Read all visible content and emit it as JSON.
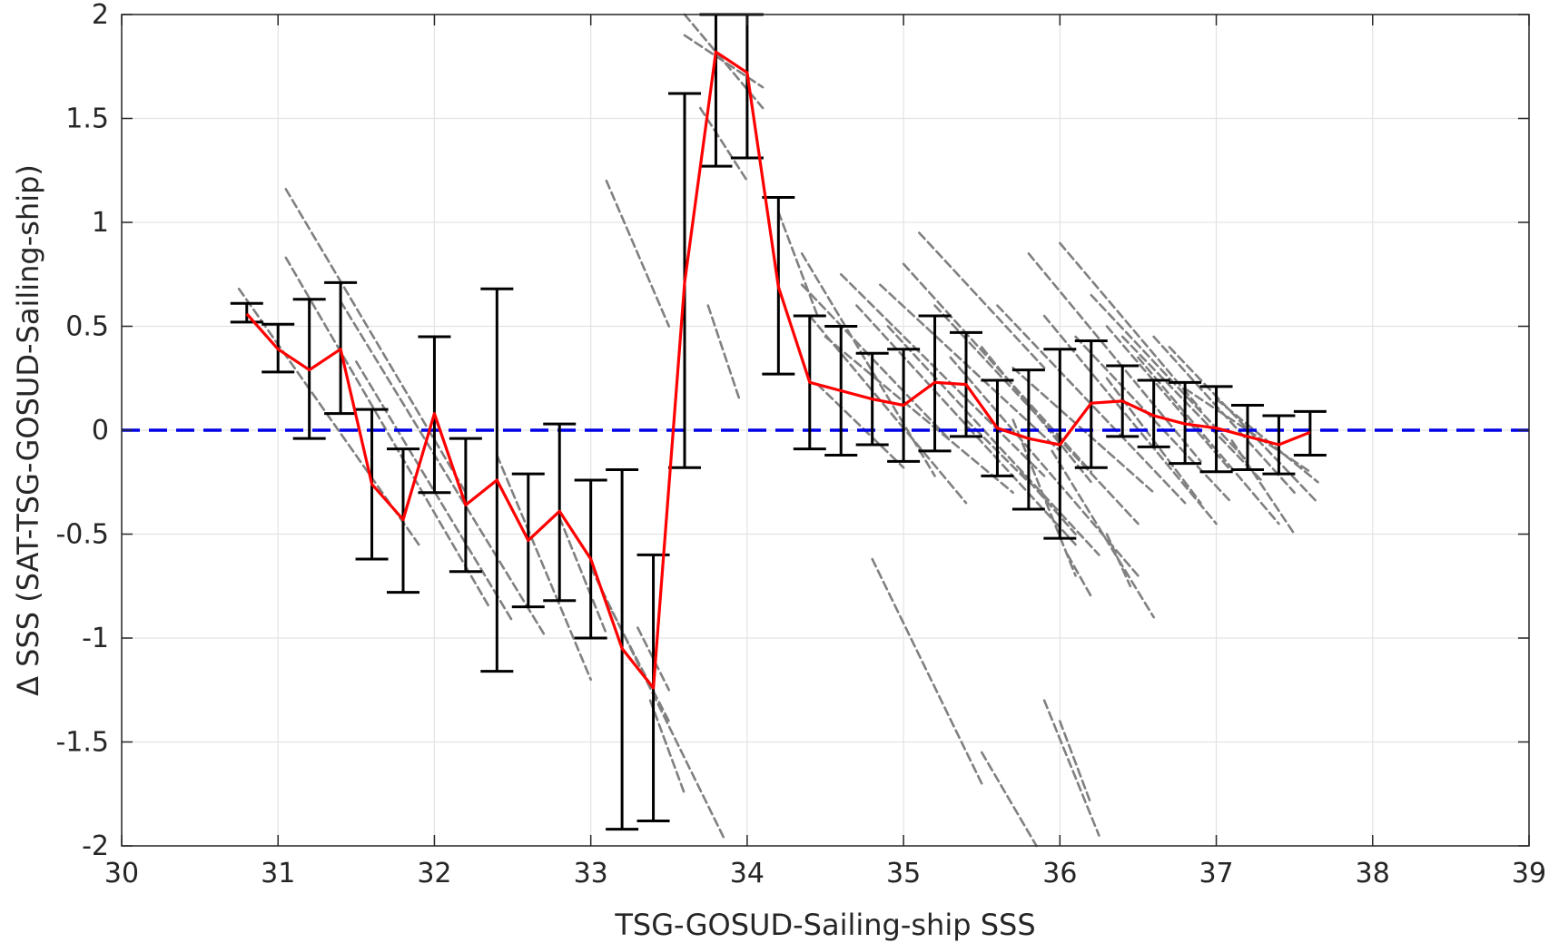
{
  "chart_data": {
    "type": "line",
    "title": "",
    "xlabel": "TSG-GOSUD-Sailing-ship SSS",
    "ylabel": "Δ SSS (SAT-TSG-GOSUD-Sailing-ship)",
    "xlim": [
      30,
      39
    ],
    "ylim": [
      -2,
      2
    ],
    "xticks": [
      30,
      31,
      32,
      33,
      34,
      35,
      36,
      37,
      38,
      39
    ],
    "yticks": [
      -2,
      -1.5,
      -1,
      -0.5,
      0,
      0.5,
      1,
      1.5,
      2
    ],
    "grid": true,
    "legend": "none",
    "colors": {
      "mean_line": "#ff0000",
      "error_bars": "#000000",
      "zero_line": "#0000e6",
      "scatter": "#808080",
      "grid": "#e3e3e3",
      "axes": "#262626"
    },
    "reference_line": {
      "y": 0,
      "style": "dashed"
    },
    "series": [
      {
        "kind": "mean_with_std",
        "x": [
          30.8,
          31.0,
          31.2,
          31.4,
          31.6,
          31.8,
          32.0,
          32.2,
          32.4,
          32.6,
          32.8,
          33.0,
          33.2,
          33.4,
          33.6,
          33.8,
          34.0,
          34.2,
          34.4,
          34.6,
          34.8,
          35.0,
          35.2,
          35.4,
          35.6,
          35.8,
          36.0,
          36.2,
          36.4,
          36.6,
          36.8,
          37.0,
          37.2,
          37.4,
          37.6
        ],
        "y": [
          0.56,
          0.39,
          0.29,
          0.39,
          -0.26,
          -0.43,
          0.08,
          -0.36,
          -0.24,
          -0.53,
          -0.39,
          -0.62,
          -1.05,
          -1.24,
          0.71,
          1.82,
          1.72,
          0.69,
          0.23,
          0.19,
          0.15,
          0.12,
          0.23,
          0.22,
          0.01,
          -0.04,
          -0.07,
          0.13,
          0.14,
          0.07,
          0.03,
          0.01,
          -0.03,
          -0.07,
          -0.01
        ],
        "lower": [
          0.52,
          0.28,
          -0.04,
          0.08,
          -0.62,
          -0.78,
          -0.3,
          -0.68,
          -1.16,
          -0.85,
          -0.82,
          -1.0,
          -1.92,
          -1.88,
          -0.18,
          1.27,
          1.31,
          0.27,
          -0.09,
          -0.12,
          -0.07,
          -0.15,
          -0.1,
          -0.03,
          -0.22,
          -0.38,
          -0.52,
          -0.18,
          -0.03,
          -0.08,
          -0.16,
          -0.2,
          -0.19,
          -0.21,
          -0.12
        ],
        "upper": [
          0.61,
          0.51,
          0.63,
          0.71,
          0.1,
          -0.09,
          0.45,
          -0.04,
          0.68,
          -0.21,
          0.03,
          -0.24,
          -0.19,
          -0.6,
          1.62,
          2.0,
          2.0,
          1.12,
          0.55,
          0.5,
          0.37,
          0.39,
          0.55,
          0.47,
          0.24,
          0.29,
          0.39,
          0.43,
          0.31,
          0.24,
          0.23,
          0.21,
          0.12,
          0.07,
          0.09
        ]
      },
      {
        "kind": "scatter_streaks",
        "segments": [
          [
            30.75,
            0.68,
            31.9,
            -0.55
          ],
          [
            31.05,
            1.16,
            32.2,
            -0.3
          ],
          [
            31.05,
            0.83,
            32.35,
            -0.85
          ],
          [
            31.4,
            0.62,
            32.7,
            -0.98
          ],
          [
            31.5,
            0.33,
            32.5,
            -0.92
          ],
          [
            32.4,
            -0.12,
            33.0,
            -1.2
          ],
          [
            32.8,
            -0.42,
            33.1,
            -0.98
          ],
          [
            33.0,
            -0.66,
            33.85,
            -1.96
          ],
          [
            33.1,
            -0.82,
            33.5,
            -1.4
          ],
          [
            33.3,
            -0.95,
            33.5,
            -1.25
          ],
          [
            33.38,
            -1.3,
            33.6,
            -1.75
          ],
          [
            33.1,
            1.2,
            33.5,
            0.5
          ],
          [
            33.6,
            2.0,
            34.1,
            1.55
          ],
          [
            33.6,
            1.9,
            34.1,
            1.65
          ],
          [
            33.7,
            1.55,
            34.0,
            1.2
          ],
          [
            33.75,
            0.6,
            33.95,
            0.15
          ],
          [
            34.2,
            1.05,
            34.45,
            0.55
          ],
          [
            34.35,
            0.85,
            35.2,
            -0.22
          ],
          [
            34.35,
            0.7,
            35.3,
            -0.05
          ],
          [
            34.4,
            0.55,
            35.4,
            -0.35
          ],
          [
            34.5,
            0.45,
            35.7,
            -0.3
          ],
          [
            34.45,
            0.22,
            35.0,
            -0.18
          ],
          [
            34.6,
            0.75,
            35.9,
            -0.22
          ],
          [
            34.7,
            0.6,
            36.1,
            -0.55
          ],
          [
            34.85,
            0.7,
            36.0,
            -0.1
          ],
          [
            34.9,
            0.5,
            36.25,
            -0.6
          ],
          [
            35.0,
            0.8,
            36.2,
            -0.2
          ],
          [
            35.1,
            0.95,
            35.9,
            0.3
          ],
          [
            35.2,
            0.6,
            36.5,
            -0.45
          ],
          [
            35.3,
            0.35,
            36.5,
            -0.7
          ],
          [
            35.5,
            0.4,
            36.2,
            -0.25
          ],
          [
            35.6,
            0.6,
            36.8,
            -0.35
          ],
          [
            35.7,
            0.3,
            36.6,
            -0.3
          ],
          [
            35.8,
            0.85,
            36.9,
            -0.15
          ],
          [
            35.9,
            0.55,
            37.0,
            -0.45
          ],
          [
            36.0,
            0.9,
            36.9,
            0.1
          ],
          [
            36.1,
            0.45,
            37.1,
            -0.35
          ],
          [
            36.2,
            0.65,
            37.2,
            -0.15
          ],
          [
            36.3,
            0.5,
            37.1,
            -0.2
          ],
          [
            36.4,
            0.45,
            37.3,
            -0.25
          ],
          [
            36.5,
            0.35,
            37.4,
            -0.45
          ],
          [
            36.6,
            0.45,
            37.5,
            -0.3
          ],
          [
            36.7,
            0.4,
            37.65,
            -0.35
          ],
          [
            36.8,
            0.2,
            37.6,
            -0.2
          ],
          [
            37.0,
            0.15,
            37.65,
            -0.25
          ],
          [
            37.1,
            -0.05,
            37.5,
            -0.5
          ],
          [
            36.3,
            0.25,
            36.9,
            -0.35
          ],
          [
            35.95,
            -0.1,
            36.6,
            -0.9
          ],
          [
            35.7,
            0.05,
            36.1,
            -0.7
          ],
          [
            35.75,
            -0.2,
            36.1,
            -0.5
          ],
          [
            35.4,
            0.05,
            35.8,
            -0.25
          ],
          [
            34.8,
            -0.62,
            35.5,
            -1.7
          ],
          [
            35.5,
            -1.55,
            35.85,
            -2.0
          ],
          [
            35.9,
            -1.3,
            36.25,
            -1.95
          ],
          [
            36.0,
            -1.4,
            36.2,
            -1.8
          ],
          [
            36.05,
            -0.6,
            36.2,
            -0.8
          ],
          [
            36.3,
            -0.5,
            36.45,
            -0.75
          ]
        ]
      }
    ]
  }
}
